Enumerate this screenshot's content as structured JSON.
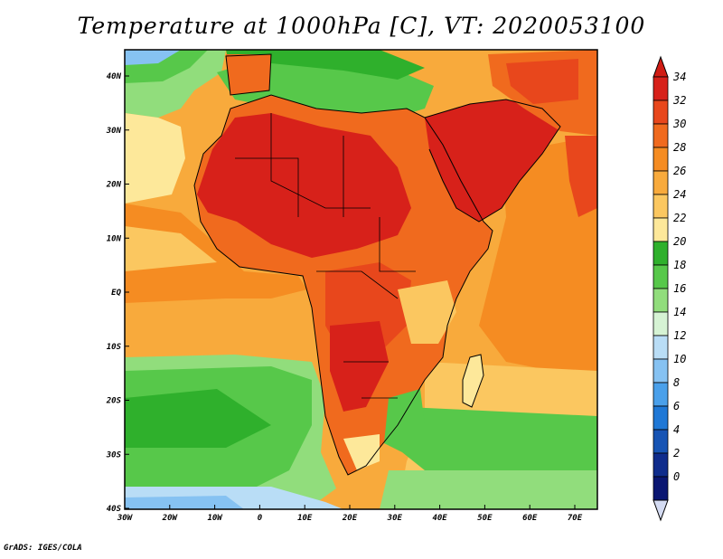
{
  "title": "Temperature at 1000hPa [C], VT: 2020053100",
  "credit": "GrADS: IGES/COLA",
  "lat_labels": [
    "40N",
    "30N",
    "20N",
    "10N",
    "EQ",
    "10S",
    "20S",
    "30S",
    "40S"
  ],
  "lon_labels": [
    "30W",
    "20W",
    "10W",
    "0",
    "10E",
    "20E",
    "30E",
    "40E",
    "50E",
    "60E",
    "70E"
  ],
  "colorbar": {
    "labels": [
      "34",
      "32",
      "30",
      "28",
      "26",
      "24",
      "22",
      "20",
      "18",
      "16",
      "14",
      "12",
      "10",
      "8",
      "6",
      "4",
      "2",
      "0"
    ],
    "colors": [
      "#d7211a",
      "#e8471c",
      "#f06a1e",
      "#f58c22",
      "#f8aa3c",
      "#fbc760",
      "#fde89a",
      "#2fb02c",
      "#57c84a",
      "#91dd7c",
      "#d6f3d4",
      "#b9ddf6",
      "#86c2f2",
      "#4aa0ea",
      "#1f78d6",
      "#1754b4",
      "#0f2c8c",
      "#0a1672"
    ],
    "top_color": "#d01c14",
    "bottom_color": "#d4dbf2"
  },
  "legend_domain": [
    0,
    34
  ]
}
